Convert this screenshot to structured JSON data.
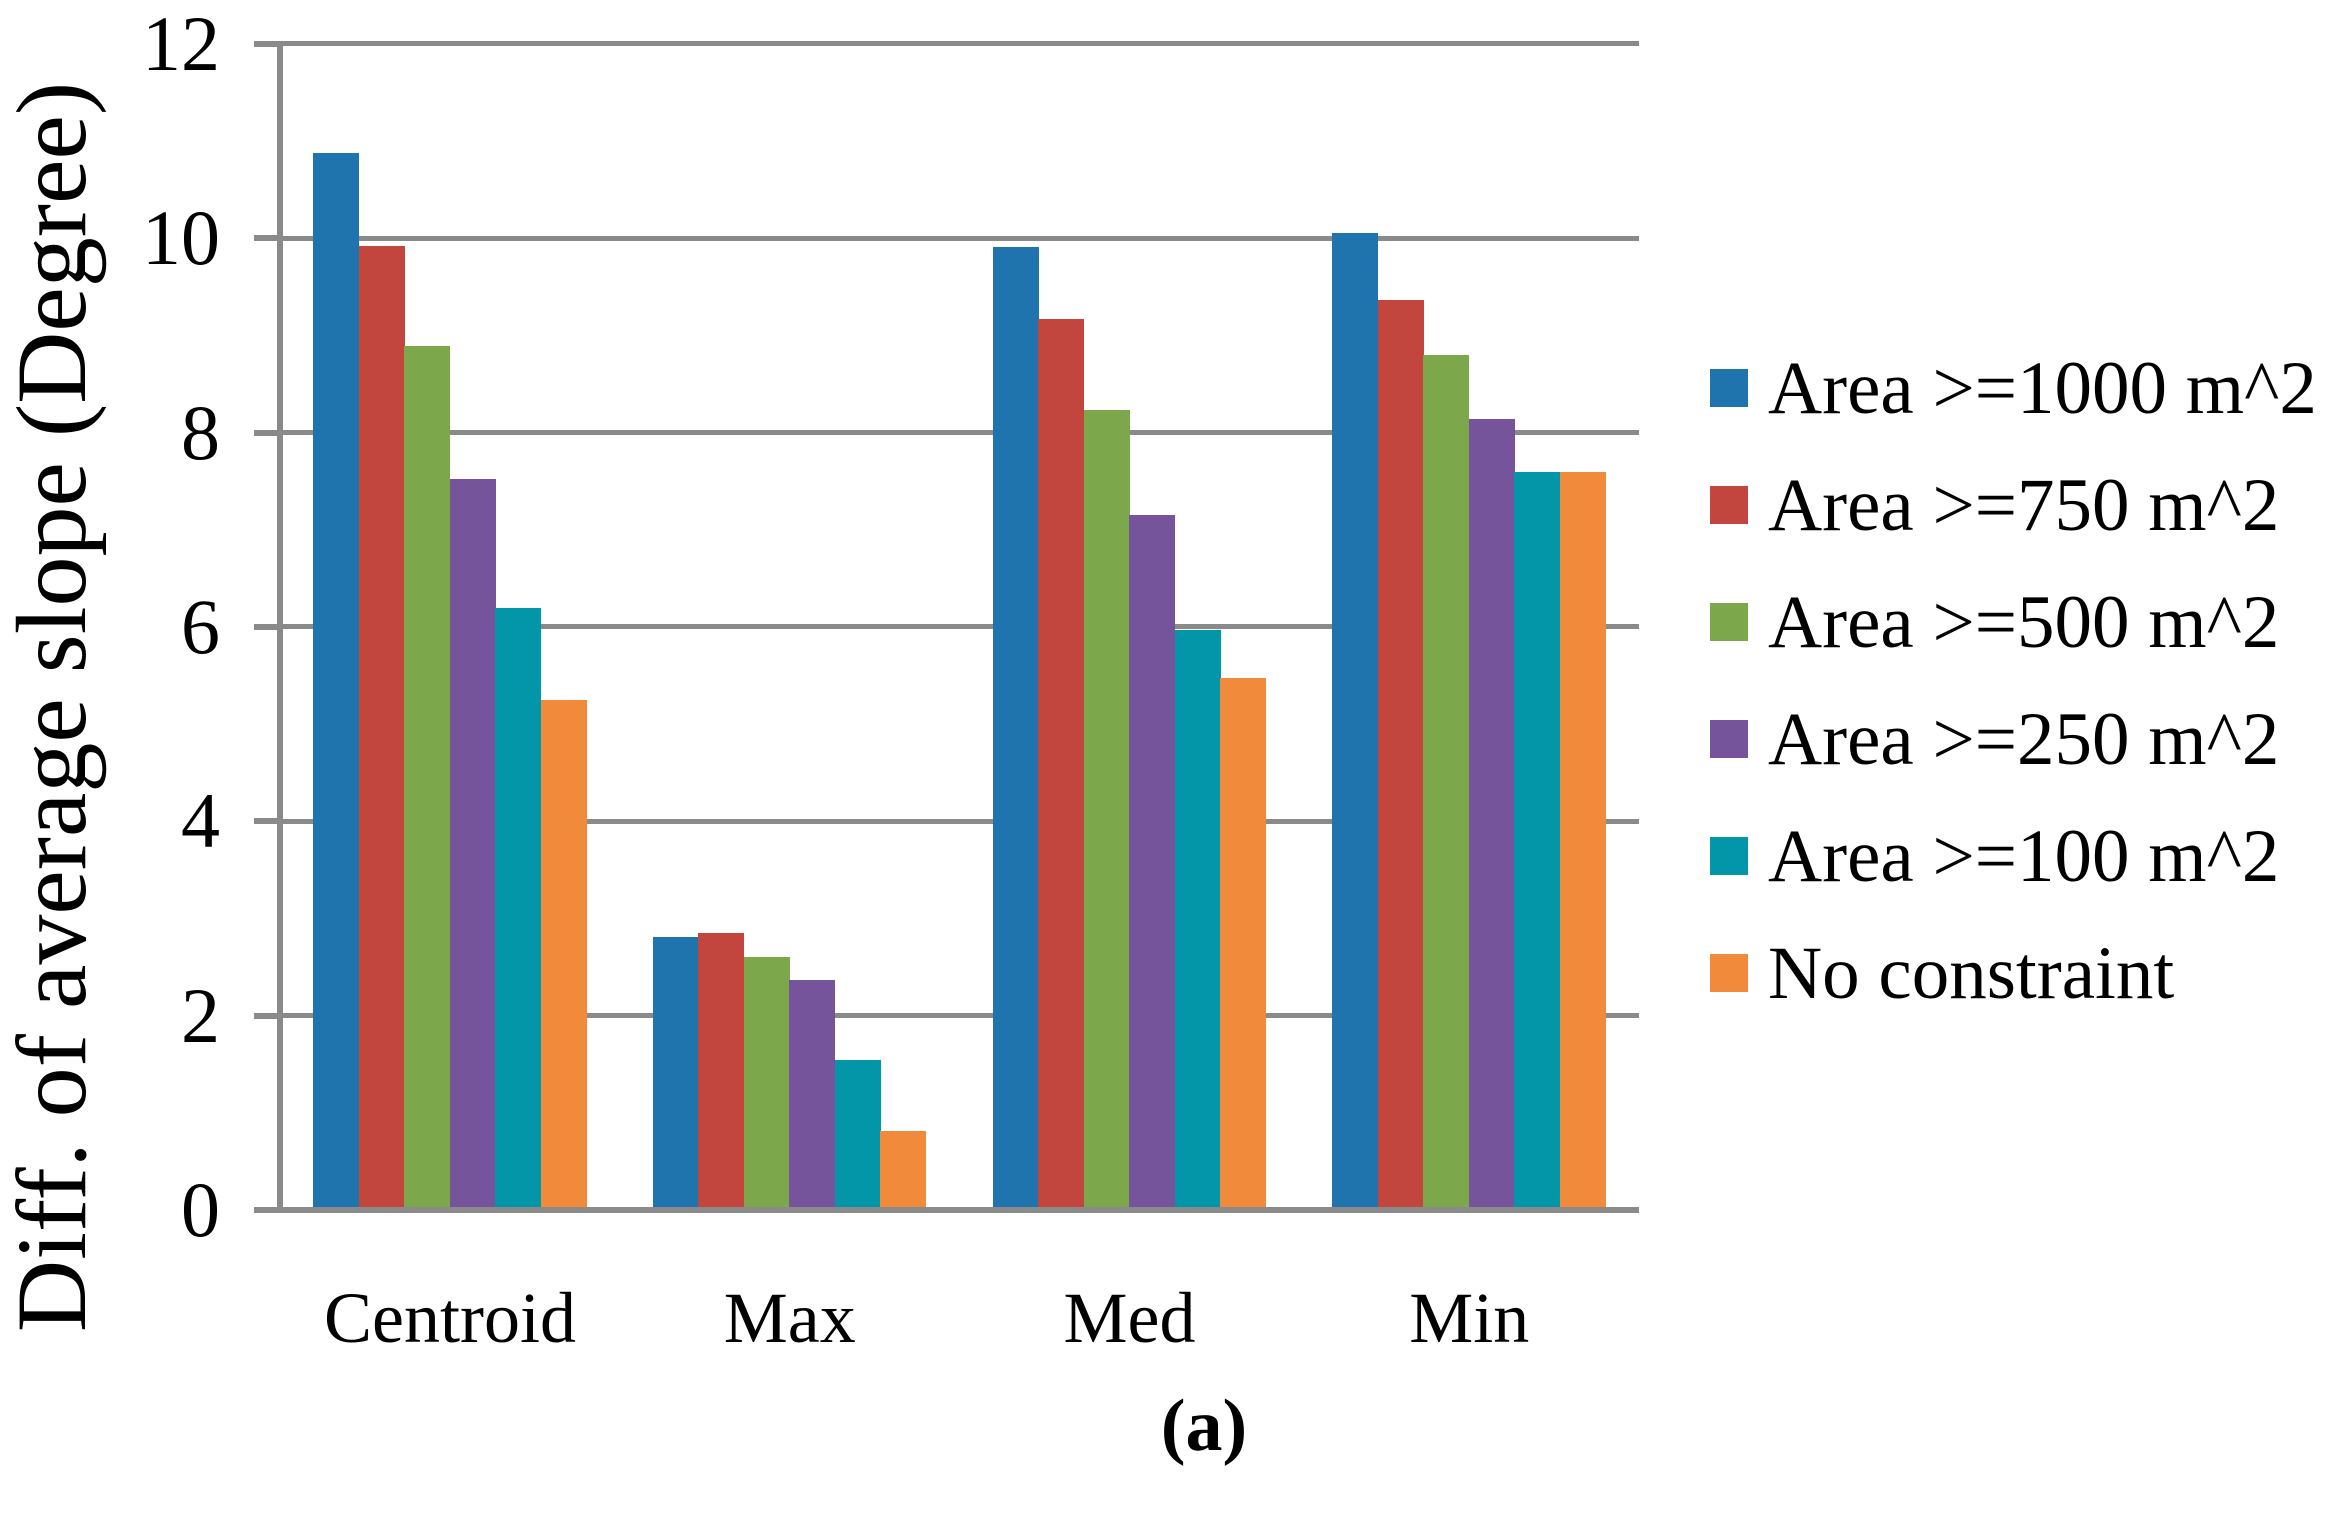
{
  "chart_data": {
    "type": "bar",
    "title": "",
    "categories": [
      "Centroid",
      "Max",
      "Med",
      "Min"
    ],
    "series": [
      {
        "name": "Area >=1000 m^2",
        "color": "#1F74AE",
        "values": [
          10.88,
          2.81,
          9.91,
          10.05
        ]
      },
      {
        "name": "Area >=750 m^2",
        "color": "#C3463E",
        "values": [
          9.92,
          2.85,
          9.17,
          9.36
        ]
      },
      {
        "name": "Area >=500 m^2",
        "color": "#7CA74A",
        "values": [
          8.89,
          2.6,
          8.23,
          8.8
        ]
      },
      {
        "name": "Area >=250 m^2",
        "color": "#76549B",
        "values": [
          7.52,
          2.37,
          7.15,
          8.14
        ]
      },
      {
        "name": "Area >=100 m^2",
        "color": "#0396A9",
        "values": [
          6.2,
          1.54,
          5.97,
          7.6
        ]
      },
      {
        "name": "No constraint",
        "color": "#F18A3A",
        "values": [
          5.25,
          0.81,
          5.48,
          7.6
        ]
      }
    ],
    "ylabel": "Diff. of average slope (Degree)",
    "xlabel": "",
    "ylim": [
      0,
      12
    ],
    "yticks": [
      0,
      2,
      4,
      6,
      8,
      10,
      12
    ],
    "grid": true,
    "legend_position": "right",
    "caption": "(a)",
    "axis_color": "#8A8A8A",
    "text_color": "#000000",
    "background": "#FFFFFF"
  }
}
